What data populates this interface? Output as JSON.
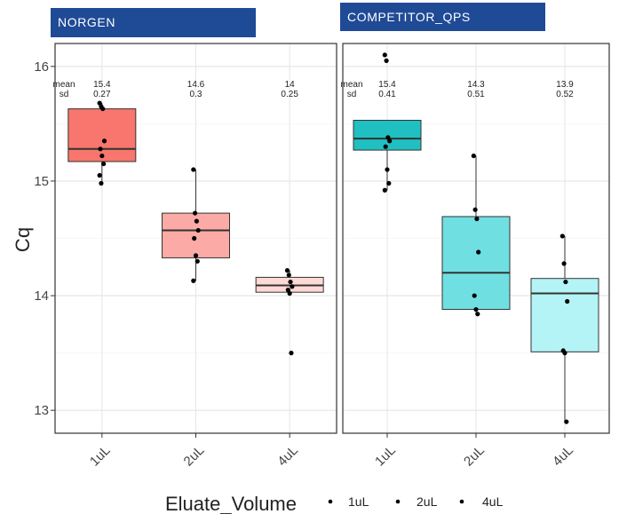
{
  "panels": [
    {
      "label": "NORGEN"
    },
    {
      "label": "COMPETITOR_QPS"
    }
  ],
  "chart_data": {
    "type": "box",
    "xlabel": "Eluate_Volume",
    "ylabel": "Cq",
    "ylim": [
      12.8,
      16.2
    ],
    "yticks": [
      13,
      14,
      15,
      16
    ],
    "categories": [
      "1uL",
      "2uL",
      "4uL"
    ],
    "grid": true,
    "legend": {
      "title": "Eluate_Volume",
      "position": "bottom",
      "entries": [
        "1uL",
        "2uL",
        "4uL"
      ]
    },
    "stat_row_labels": [
      "mean",
      "sd"
    ],
    "facets": [
      {
        "name": "NORGEN",
        "groups": [
          {
            "category": "1uL",
            "color": "#f8766d",
            "mean": "15.4",
            "sd": "0.27",
            "box": {
              "whisker_low": 14.98,
              "q1": 15.17,
              "median": 15.28,
              "q3": 15.63,
              "whisker_high": 15.68
            },
            "points": [
              15.68,
              15.65,
              15.63,
              15.35,
              15.28,
              15.22,
              15.15,
              15.05,
              14.98
            ]
          },
          {
            "category": "2uL",
            "color": "#fcaaa5",
            "mean": "14.6",
            "sd": "0.3",
            "box": {
              "whisker_low": 14.13,
              "q1": 14.33,
              "median": 14.57,
              "q3": 14.72,
              "whisker_high": 15.1
            },
            "points": [
              15.1,
              14.72,
              14.65,
              14.57,
              14.5,
              14.35,
              14.3,
              14.13
            ]
          },
          {
            "category": "4uL",
            "color": "#fdd9d6",
            "mean": "14",
            "sd": "0.25",
            "box": {
              "whisker_low": 14.0,
              "q1": 14.03,
              "median": 14.09,
              "q3": 14.16,
              "whisker_high": 14.22
            },
            "points": [
              14.22,
              14.18,
              14.12,
              14.08,
              14.05,
              14.02,
              13.5
            ]
          }
        ]
      },
      {
        "name": "COMPETITOR_QPS",
        "groups": [
          {
            "category": "1uL",
            "color": "#20c0c2",
            "mean": "15.4",
            "sd": "0.41",
            "box": {
              "whisker_low": 14.92,
              "q1": 15.27,
              "median": 15.37,
              "q3": 15.53,
              "whisker_high": 15.53
            },
            "points": [
              16.1,
              16.05,
              15.38,
              15.35,
              15.3,
              15.1,
              14.98,
              14.92
            ]
          },
          {
            "category": "2uL",
            "color": "#6fdfe2",
            "mean": "14.3",
            "sd": "0.51",
            "box": {
              "whisker_low": 13.84,
              "q1": 13.88,
              "median": 14.2,
              "q3": 14.69,
              "whisker_high": 15.22
            },
            "points": [
              15.22,
              14.75,
              14.67,
              14.38,
              14.0,
              13.88,
              13.84
            ]
          },
          {
            "category": "4uL",
            "color": "#b4f4f6",
            "mean": "13.9",
            "sd": "0.52",
            "box": {
              "whisker_low": 12.9,
              "q1": 13.51,
              "median": 14.02,
              "q3": 14.15,
              "whisker_high": 14.52
            },
            "points": [
              14.52,
              14.28,
              14.12,
              13.95,
              13.52,
              13.5,
              12.9
            ]
          }
        ]
      }
    ]
  }
}
